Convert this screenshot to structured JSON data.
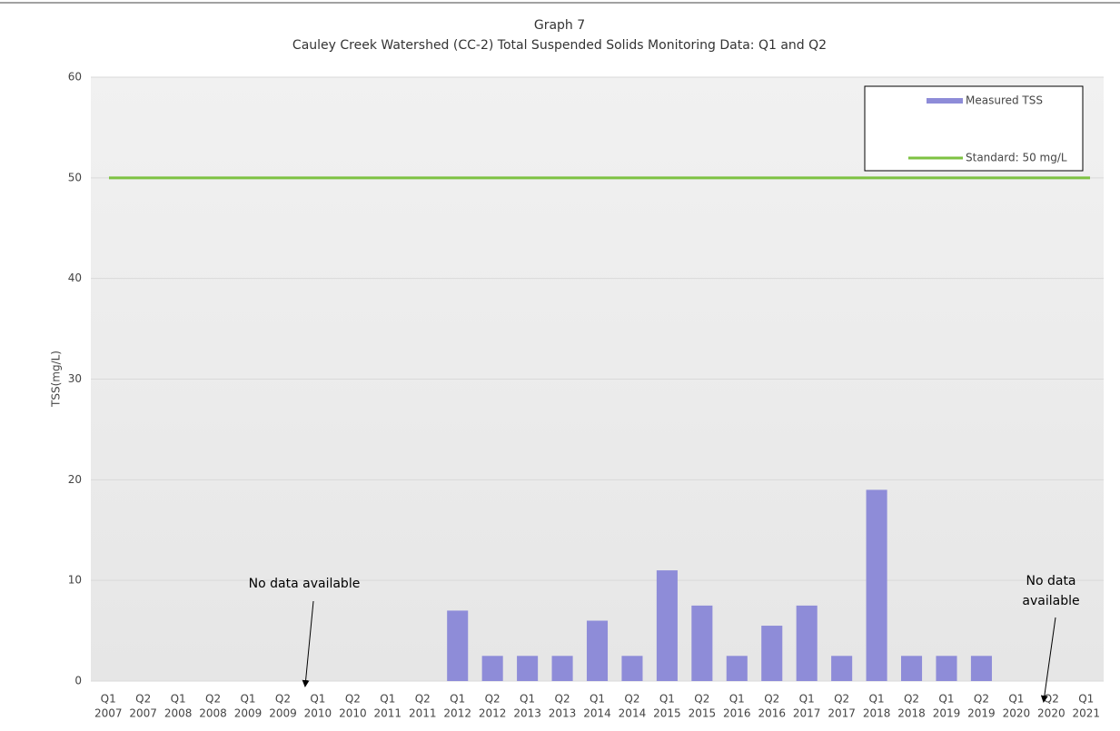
{
  "chart_data": {
    "type": "bar",
    "title": "Graph 7",
    "subtitle": "Cauley Creek Watershed (CC-2) Total Suspended Solids Monitoring Data: Q1 and Q2",
    "y_label": "TSS(mg/L)",
    "categories": [
      [
        "Q1",
        "2007"
      ],
      [
        "Q2",
        "2007"
      ],
      [
        "Q1",
        "2008"
      ],
      [
        "Q2",
        "2008"
      ],
      [
        "Q1",
        "2009"
      ],
      [
        "Q2",
        "2009"
      ],
      [
        "Q1",
        "2010"
      ],
      [
        "Q2",
        "2010"
      ],
      [
        "Q1",
        "2011"
      ],
      [
        "Q2",
        "2011"
      ],
      [
        "Q1",
        "2012"
      ],
      [
        "Q2",
        "2012"
      ],
      [
        "Q1",
        "2013"
      ],
      [
        "Q2",
        "2013"
      ],
      [
        "Q1",
        "2014"
      ],
      [
        "Q2",
        "2014"
      ],
      [
        "Q1",
        "2015"
      ],
      [
        "Q2",
        "2015"
      ],
      [
        "Q1",
        "2016"
      ],
      [
        "Q2",
        "2016"
      ],
      [
        "Q1",
        "2017"
      ],
      [
        "Q2",
        "2017"
      ],
      [
        "Q1",
        "2018"
      ],
      [
        "Q2",
        "2018"
      ],
      [
        "Q1",
        "2019"
      ],
      [
        "Q2",
        "2019"
      ],
      [
        "Q1",
        "2020"
      ],
      [
        "Q2",
        "2020"
      ],
      [
        "Q1",
        "2021"
      ]
    ],
    "series": [
      {
        "name": "Measured TSS",
        "color": "#8e8cd8",
        "values": [
          null,
          null,
          null,
          null,
          null,
          null,
          null,
          null,
          null,
          null,
          7,
          2.5,
          2.5,
          2.5,
          6,
          2.5,
          11,
          7.5,
          2.5,
          5.5,
          7.5,
          2.5,
          19,
          2.5,
          2.5,
          2.5,
          null,
          null,
          null
        ]
      }
    ],
    "standard": {
      "name": "Standard: 50 mg/L",
      "value": 50,
      "color": "#7dc242"
    },
    "ylim": [
      0,
      60
    ],
    "yticks": [
      0,
      10,
      20,
      30,
      40,
      50,
      60
    ],
    "grid": true,
    "legend": "upper right",
    "annotations": [
      {
        "lines": [
          "No data available"
        ]
      },
      {
        "lines": [
          "No data",
          "available"
        ]
      }
    ]
  }
}
